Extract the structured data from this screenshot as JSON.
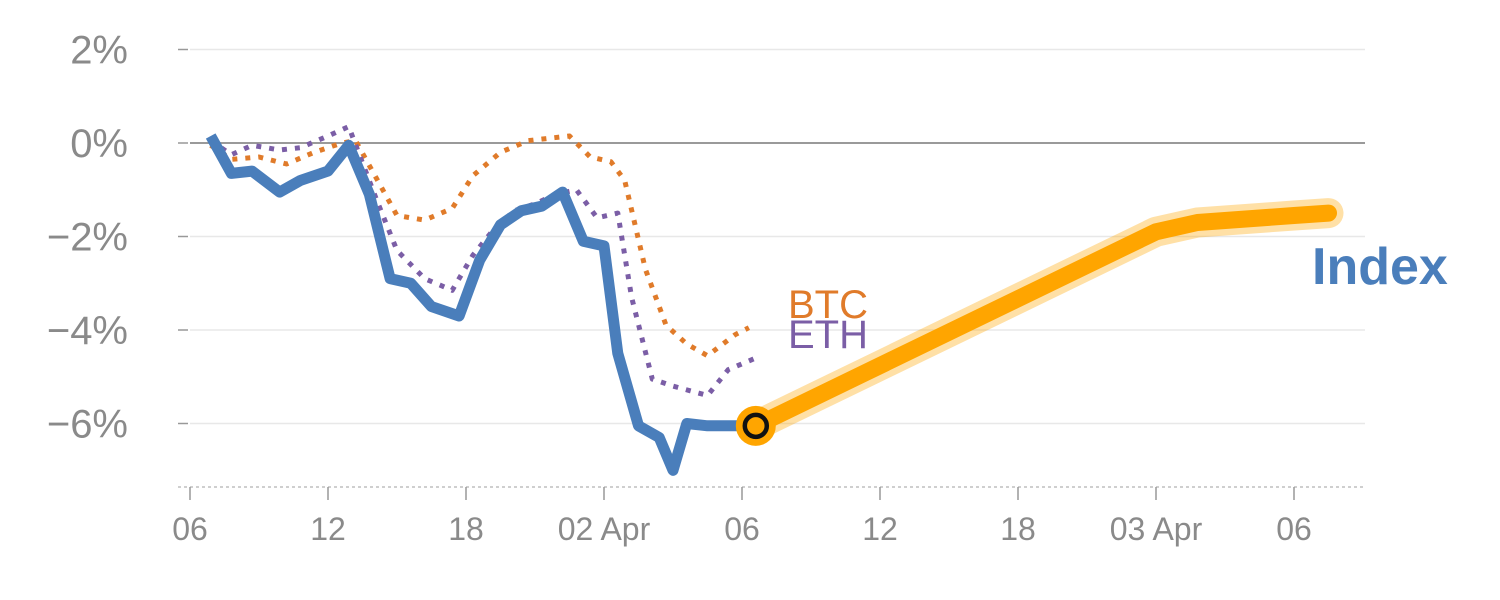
{
  "chart_data": {
    "type": "line",
    "title": "",
    "xlabel": "",
    "ylabel": "",
    "y_unit": "%",
    "ylim": [
      -7.4,
      2.6
    ],
    "yticks": [
      2,
      0,
      -2,
      -4,
      -6
    ],
    "ytick_labels": [
      "2%",
      "0%",
      "−2%",
      "−4%",
      "−6%"
    ],
    "xlim": [
      0,
      85
    ],
    "xticks": [
      0,
      10,
      20,
      30,
      40,
      50,
      60,
      70,
      80
    ],
    "xtick_labels": [
      "06",
      "12",
      "18",
      "02 Apr",
      "06",
      "12",
      "18",
      "03 Apr",
      "06"
    ],
    "grid": "horizontal",
    "series": [
      {
        "name": "Index",
        "color": "#4a7ebb",
        "style": "solid",
        "x": [
          1.5,
          3,
          4.5,
          6.5,
          8,
          10,
          11.5,
          13,
          14.5,
          16,
          17.5,
          19.5,
          21,
          22.5,
          24,
          25.5,
          27,
          28.5,
          30,
          31,
          32.5,
          34,
          35,
          36,
          37.5,
          39,
          40
        ],
        "y": [
          0.15,
          -0.65,
          -0.6,
          -1.05,
          -0.8,
          -0.6,
          -0.05,
          -1.1,
          -2.9,
          -3.0,
          -3.5,
          -3.7,
          -2.5,
          -1.75,
          -1.45,
          -1.35,
          -1.05,
          -2.1,
          -2.2,
          -4.5,
          -6.05,
          -6.3,
          -7.0,
          -6.0,
          -6.05,
          -6.05,
          -6.05
        ]
      },
      {
        "name": "BTC",
        "color": "#e07b2a",
        "style": "dotted",
        "x": [
          1.5,
          3,
          5,
          7,
          9,
          11,
          12,
          13.5,
          15,
          17,
          19,
          20.5,
          22.5,
          24.5,
          26,
          27.5,
          29,
          30.5,
          31.5,
          33,
          34.5,
          36,
          37.5,
          39.5,
          40.5
        ],
        "y": [
          -0.05,
          -0.35,
          -0.3,
          -0.45,
          -0.2,
          0.0,
          0.05,
          -0.75,
          -1.55,
          -1.65,
          -1.4,
          -0.7,
          -0.2,
          0.05,
          0.1,
          0.15,
          -0.3,
          -0.4,
          -0.8,
          -2.7,
          -3.9,
          -4.3,
          -4.55,
          -4.1,
          -3.95
        ]
      },
      {
        "name": "ETH",
        "color": "#7b5ea6",
        "style": "dotted",
        "x": [
          1.5,
          3,
          4.5,
          6.5,
          8,
          10,
          11.5,
          13.5,
          15,
          17,
          19,
          20.5,
          22,
          23.5,
          25,
          26.5,
          28,
          29.5,
          31,
          32,
          33.5,
          35,
          37.5,
          39,
          41
        ],
        "y": [
          0.05,
          -0.25,
          -0.05,
          -0.15,
          -0.1,
          0.15,
          0.35,
          -1.2,
          -2.3,
          -2.9,
          -3.15,
          -2.4,
          -1.85,
          -1.45,
          -1.3,
          -1.1,
          -1.0,
          -1.6,
          -1.5,
          -3.3,
          -5.05,
          -5.2,
          -5.4,
          -4.85,
          -4.6
        ]
      },
      {
        "name": "",
        "color": "#ffa500",
        "style": "thick-projection",
        "x": [
          41,
          70,
          73,
          80,
          82.5
        ],
        "y": [
          -6.05,
          -1.9,
          -1.7,
          -1.55,
          -1.5
        ]
      }
    ],
    "labels": [
      {
        "text": "BTC",
        "color": "#e07b2a"
      },
      {
        "text": "ETH",
        "color": "#7b5ea6"
      },
      {
        "text": "Index",
        "color": "#4a7ebb"
      }
    ],
    "marker": {
      "x": 41,
      "y": -6.05,
      "fill": "#ffa500",
      "stroke": "#111111"
    }
  }
}
